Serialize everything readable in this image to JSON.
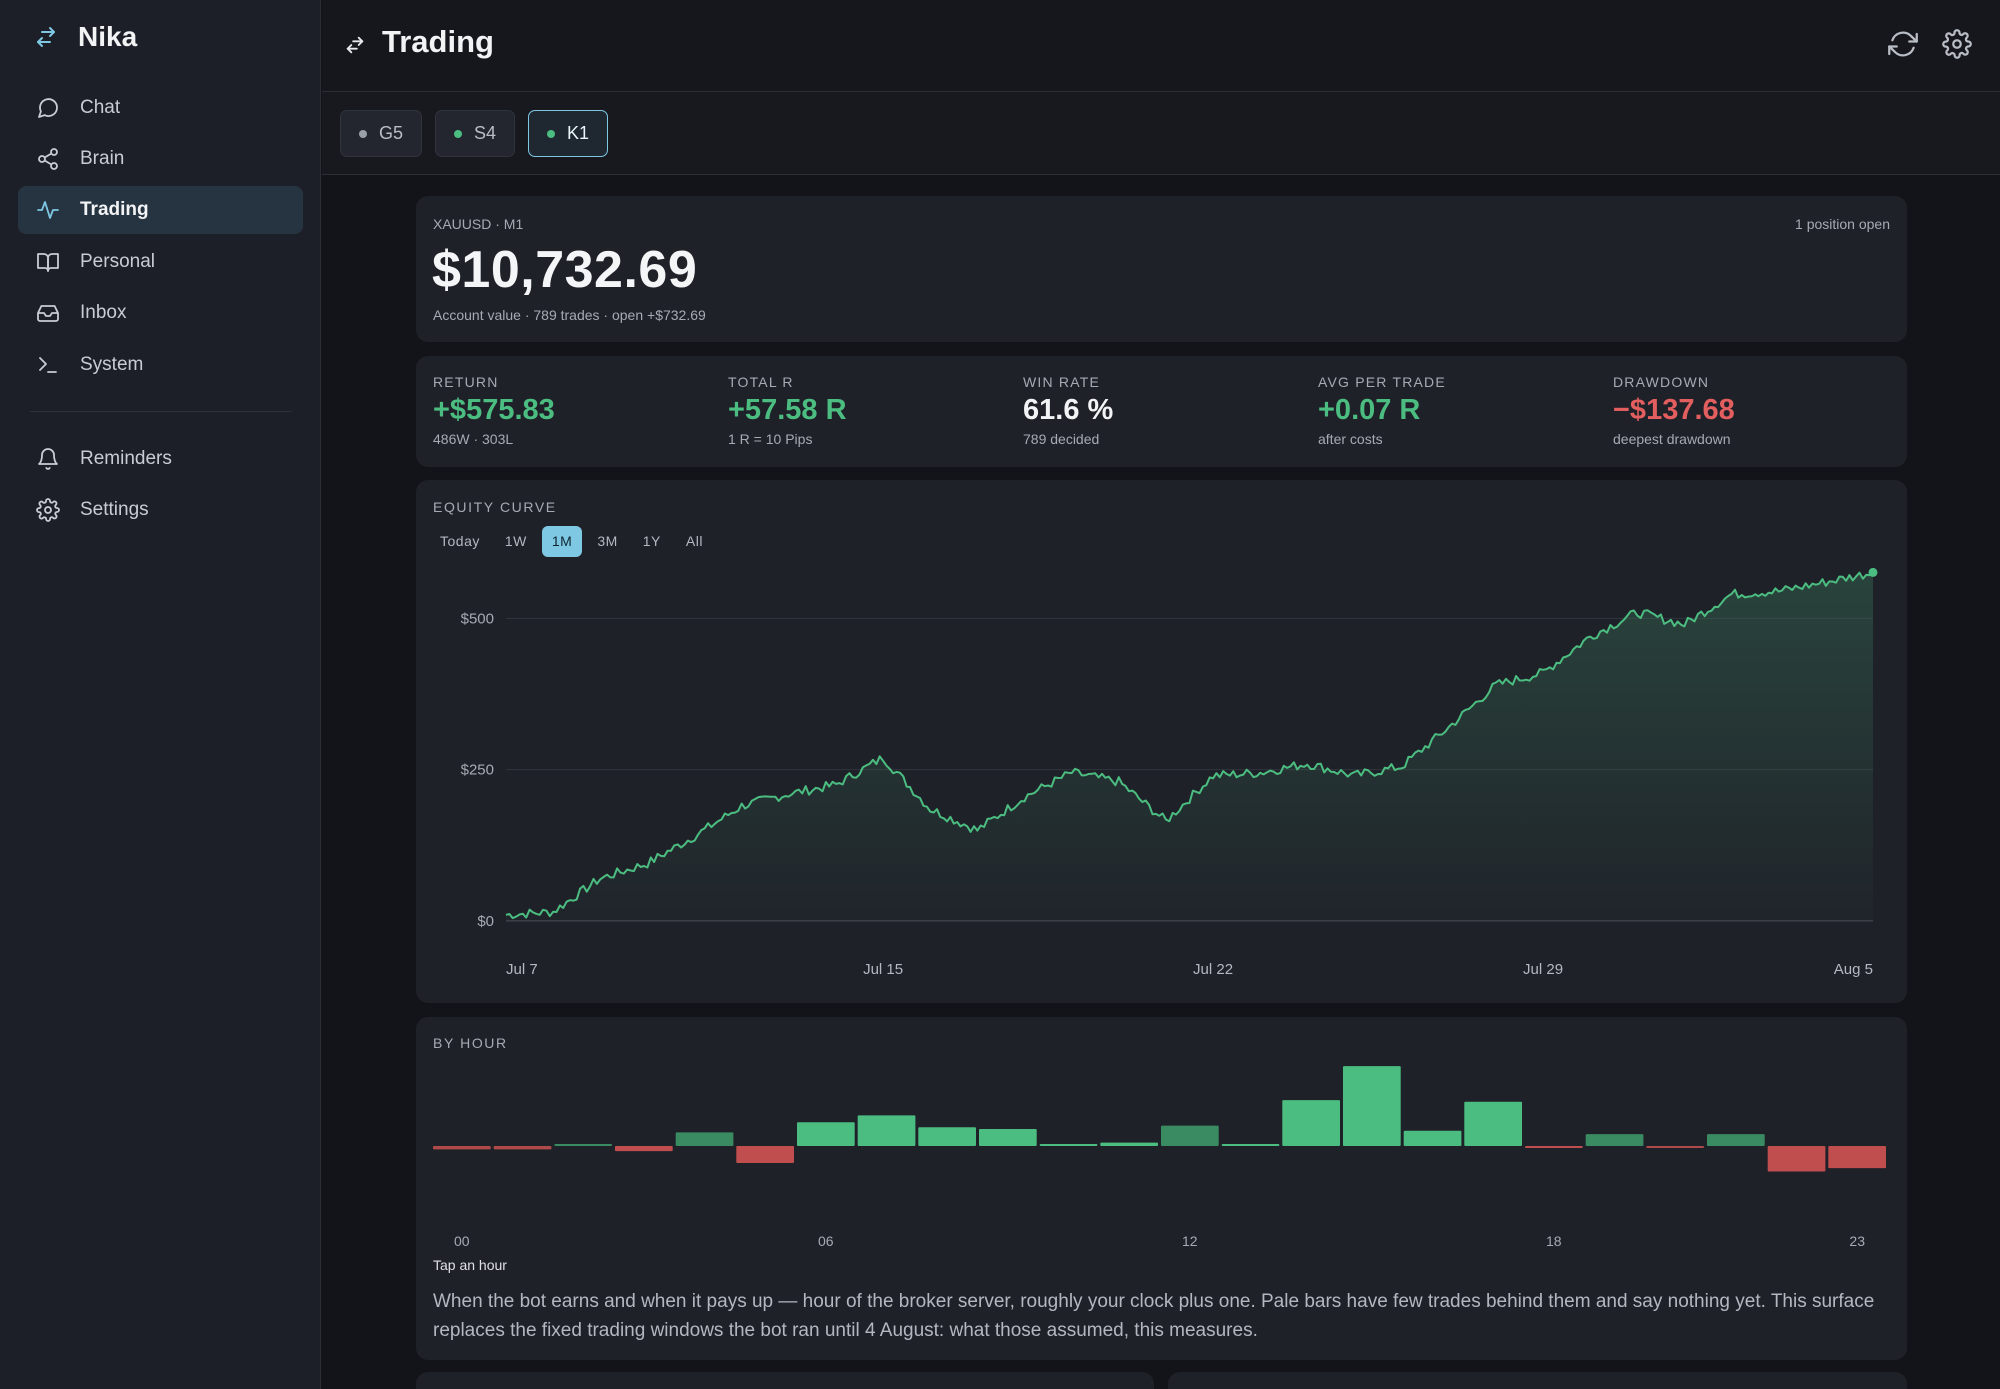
{
  "app": {
    "name": "Nika"
  },
  "sidebar": {
    "items": [
      {
        "label": "Chat",
        "icon": "chat-bubble-icon"
      },
      {
        "label": "Brain",
        "icon": "share-nodes-icon"
      },
      {
        "label": "Trading",
        "icon": "pulse-icon",
        "active": true
      },
      {
        "label": "Personal",
        "icon": "book-open-icon"
      },
      {
        "label": "Inbox",
        "icon": "inbox-icon"
      },
      {
        "label": "System",
        "icon": "terminal-icon"
      }
    ],
    "secondary": [
      {
        "label": "Reminders",
        "icon": "bell-icon"
      },
      {
        "label": "Settings",
        "icon": "gear-icon"
      }
    ]
  },
  "header": {
    "title": "Trading",
    "refresh_icon": "refresh-icon",
    "settings_icon": "gear-icon"
  },
  "bots": [
    {
      "label": "G5",
      "status_color": "#9aa0a8"
    },
    {
      "label": "S4",
      "status_color": "#4cbd80"
    },
    {
      "label": "K1",
      "status_color": "#4cbd80",
      "active": true
    }
  ],
  "account": {
    "symbol": "XAUUSD · M1",
    "positions": "1 position open",
    "value": "$10,732.69",
    "subtitle": "Account value · 789 trades · open +$732.69"
  },
  "stats": [
    {
      "label": "RETURN",
      "value": "+$575.83",
      "sub": "486W · 303L",
      "tone": "pos"
    },
    {
      "label": "TOTAL R",
      "value": "+57.58 R",
      "sub": "1 R = 10 Pips",
      "tone": "pos"
    },
    {
      "label": "WIN RATE",
      "value": "61.6 %",
      "sub": "789 decided",
      "tone": "neu"
    },
    {
      "label": "AVG PER TRADE",
      "value": "+0.07 R",
      "sub": "after costs",
      "tone": "pos"
    },
    {
      "label": "DRAWDOWN",
      "value": "−$137.68",
      "sub": "deepest drawdown",
      "tone": "neg"
    }
  ],
  "equity": {
    "title": "EQUITY CURVE",
    "ranges": [
      "Today",
      "1W",
      "1M",
      "3M",
      "1Y",
      "All"
    ],
    "active_range": "1M"
  },
  "by_hour": {
    "title": "BY HOUR",
    "hint": "Tap an hour",
    "description": "When the bot earns and when it pays up — hour of the broker server, roughly your clock plus one. Pale bars have few trades behind them and say nothing yet. This surface replaces the fixed trading windows the bot ran until 4 August: what those assumed, this measures."
  },
  "colors": {
    "accent": "#7ec8e3",
    "positive": "#4cbd80",
    "negative": "#e35e5e",
    "positive_pale": "#3a8a62",
    "negative_pale": "#b04a4a"
  },
  "chart_data": [
    {
      "type": "area",
      "title": "EQUITY CURVE",
      "x_ticks": [
        "Jul 7",
        "Jul 15",
        "Jul 22",
        "Jul 29",
        "Aug 5"
      ],
      "y_ticks": [
        "$0",
        "$250",
        "$500"
      ],
      "ylim": [
        -20,
        580
      ],
      "series": [
        {
          "x": [
            "Jul 7",
            "Jul 8",
            "Jul 9",
            "Jul 10",
            "Jul 11",
            "Jul 12",
            "Jul 13",
            "Jul 14",
            "Jul 15",
            "Jul 16",
            "Jul 17",
            "Jul 18",
            "Jul 19",
            "Jul 20",
            "Jul 21",
            "Jul 22",
            "Jul 23",
            "Jul 24",
            "Jul 25",
            "Jul 26",
            "Jul 27",
            "Jul 28",
            "Jul 29",
            "Jul 30",
            "Jul 31",
            "Aug 1",
            "Aug 2",
            "Aug 3",
            "Aug 4",
            "Aug 5"
          ],
          "values": [
            10,
            15,
            70,
            95,
            140,
            190,
            210,
            225,
            270,
            185,
            150,
            205,
            245,
            230,
            165,
            240,
            245,
            260,
            240,
            255,
            320,
            390,
            410,
            470,
            510,
            490,
            540,
            545,
            560,
            576
          ]
        }
      ],
      "grid": true
    },
    {
      "type": "bar",
      "title": "BY HOUR",
      "categories": [
        "00",
        "01",
        "02",
        "03",
        "04",
        "05",
        "06",
        "07",
        "08",
        "09",
        "10",
        "11",
        "12",
        "13",
        "14",
        "15",
        "16",
        "17",
        "18",
        "19",
        "20",
        "21",
        "22",
        "23"
      ],
      "x_tick_labels": [
        "00",
        "06",
        "12",
        "18",
        "23"
      ],
      "values": [
        -2,
        -2,
        1,
        -3,
        8,
        -10,
        14,
        18,
        11,
        10,
        1,
        2,
        12,
        1,
        27,
        47,
        9,
        26,
        -1,
        7,
        -1,
        7,
        -15,
        -13
      ],
      "pale": [
        true,
        true,
        true,
        false,
        true,
        false,
        false,
        false,
        false,
        false,
        false,
        false,
        true,
        false,
        false,
        false,
        false,
        false,
        false,
        true,
        true,
        true,
        false,
        false
      ]
    }
  ]
}
